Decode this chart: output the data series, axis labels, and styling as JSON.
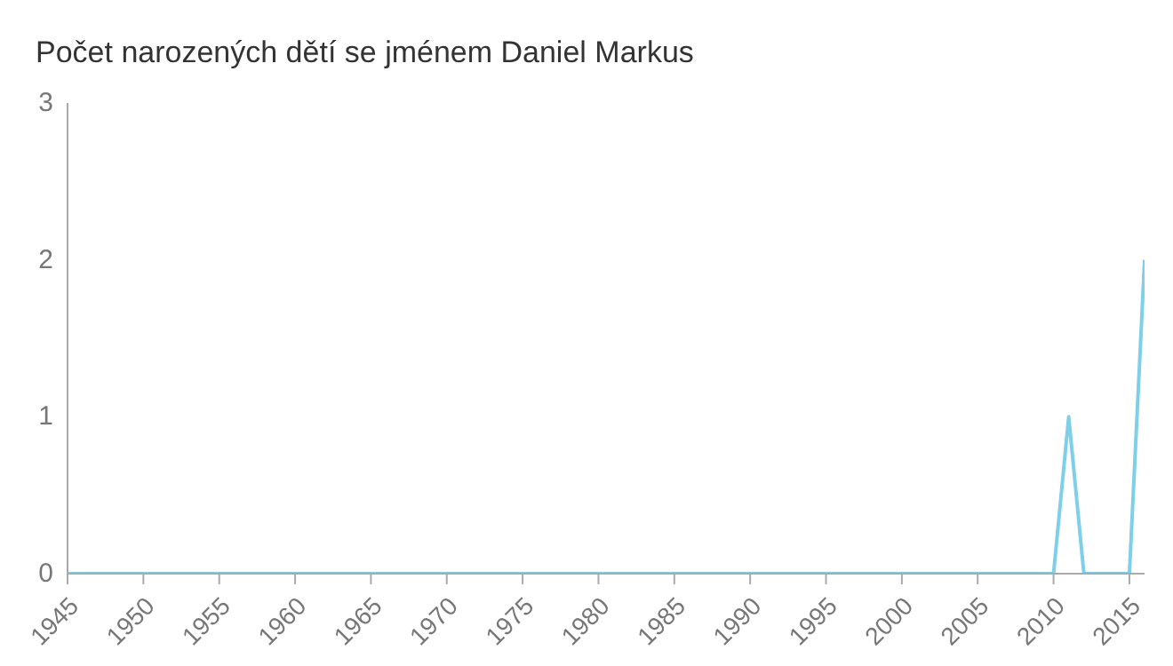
{
  "chart_data": {
    "type": "line",
    "title": "Počet narozených dětí se jménem Daniel Markus",
    "x": [
      1945,
      2010,
      2011,
      2012,
      2015,
      2016
    ],
    "series": [
      {
        "color": "#7ecfe8",
        "values": [
          0,
          0,
          1,
          0,
          0,
          2
        ]
      }
    ],
    "xlim": [
      1945,
      2016
    ],
    "xticks": [
      1945,
      1950,
      1955,
      1960,
      1965,
      1970,
      1975,
      1980,
      1985,
      1990,
      1995,
      2000,
      2005,
      2010,
      2015
    ],
    "ylim": [
      0,
      3
    ],
    "yticks": [
      0,
      1,
      2,
      3
    ],
    "grid": false,
    "legend": false,
    "marker": "none",
    "line_style": "solid"
  }
}
